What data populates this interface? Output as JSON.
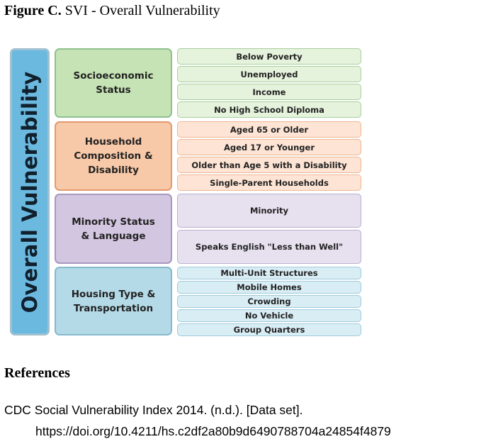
{
  "figure": {
    "label": "Figure C.",
    "title": "SVI - Overall Vulnerability"
  },
  "diagram": {
    "overall_label": "Overall Vulnerability",
    "themes": [
      {
        "name": "Socioeconomic\nStatus",
        "color": "#c6e3b5",
        "variables": [
          "Below Poverty",
          "Unemployed",
          "Income",
          "No High School Diploma"
        ]
      },
      {
        "name": "Household\nComposition &\nDisability",
        "color": "#f8c9a8",
        "variables": [
          "Aged 65 or Older",
          "Aged 17 or Younger",
          "Older than Age 5 with a Disability",
          "Single-Parent Households"
        ]
      },
      {
        "name": "Minority Status\n& Language",
        "color": "#d3c6e0",
        "variables": [
          "Minority",
          "Speaks English \"Less than Well\""
        ]
      },
      {
        "name": "Housing Type &\nTransportation",
        "color": "#b4dae7",
        "variables": [
          "Multi-Unit Structures",
          "Mobile Homes",
          "Crowding",
          "No Vehicle",
          "Group Quarters"
        ]
      }
    ]
  },
  "references": {
    "heading": "References",
    "entries": [
      {
        "text": "CDC Social Vulnerability Index 2014. (n.d.). [Data set].",
        "doi": "https://doi.org/10.4211/hs.c2df2a80b9d6490788704a24854f4879"
      }
    ]
  }
}
